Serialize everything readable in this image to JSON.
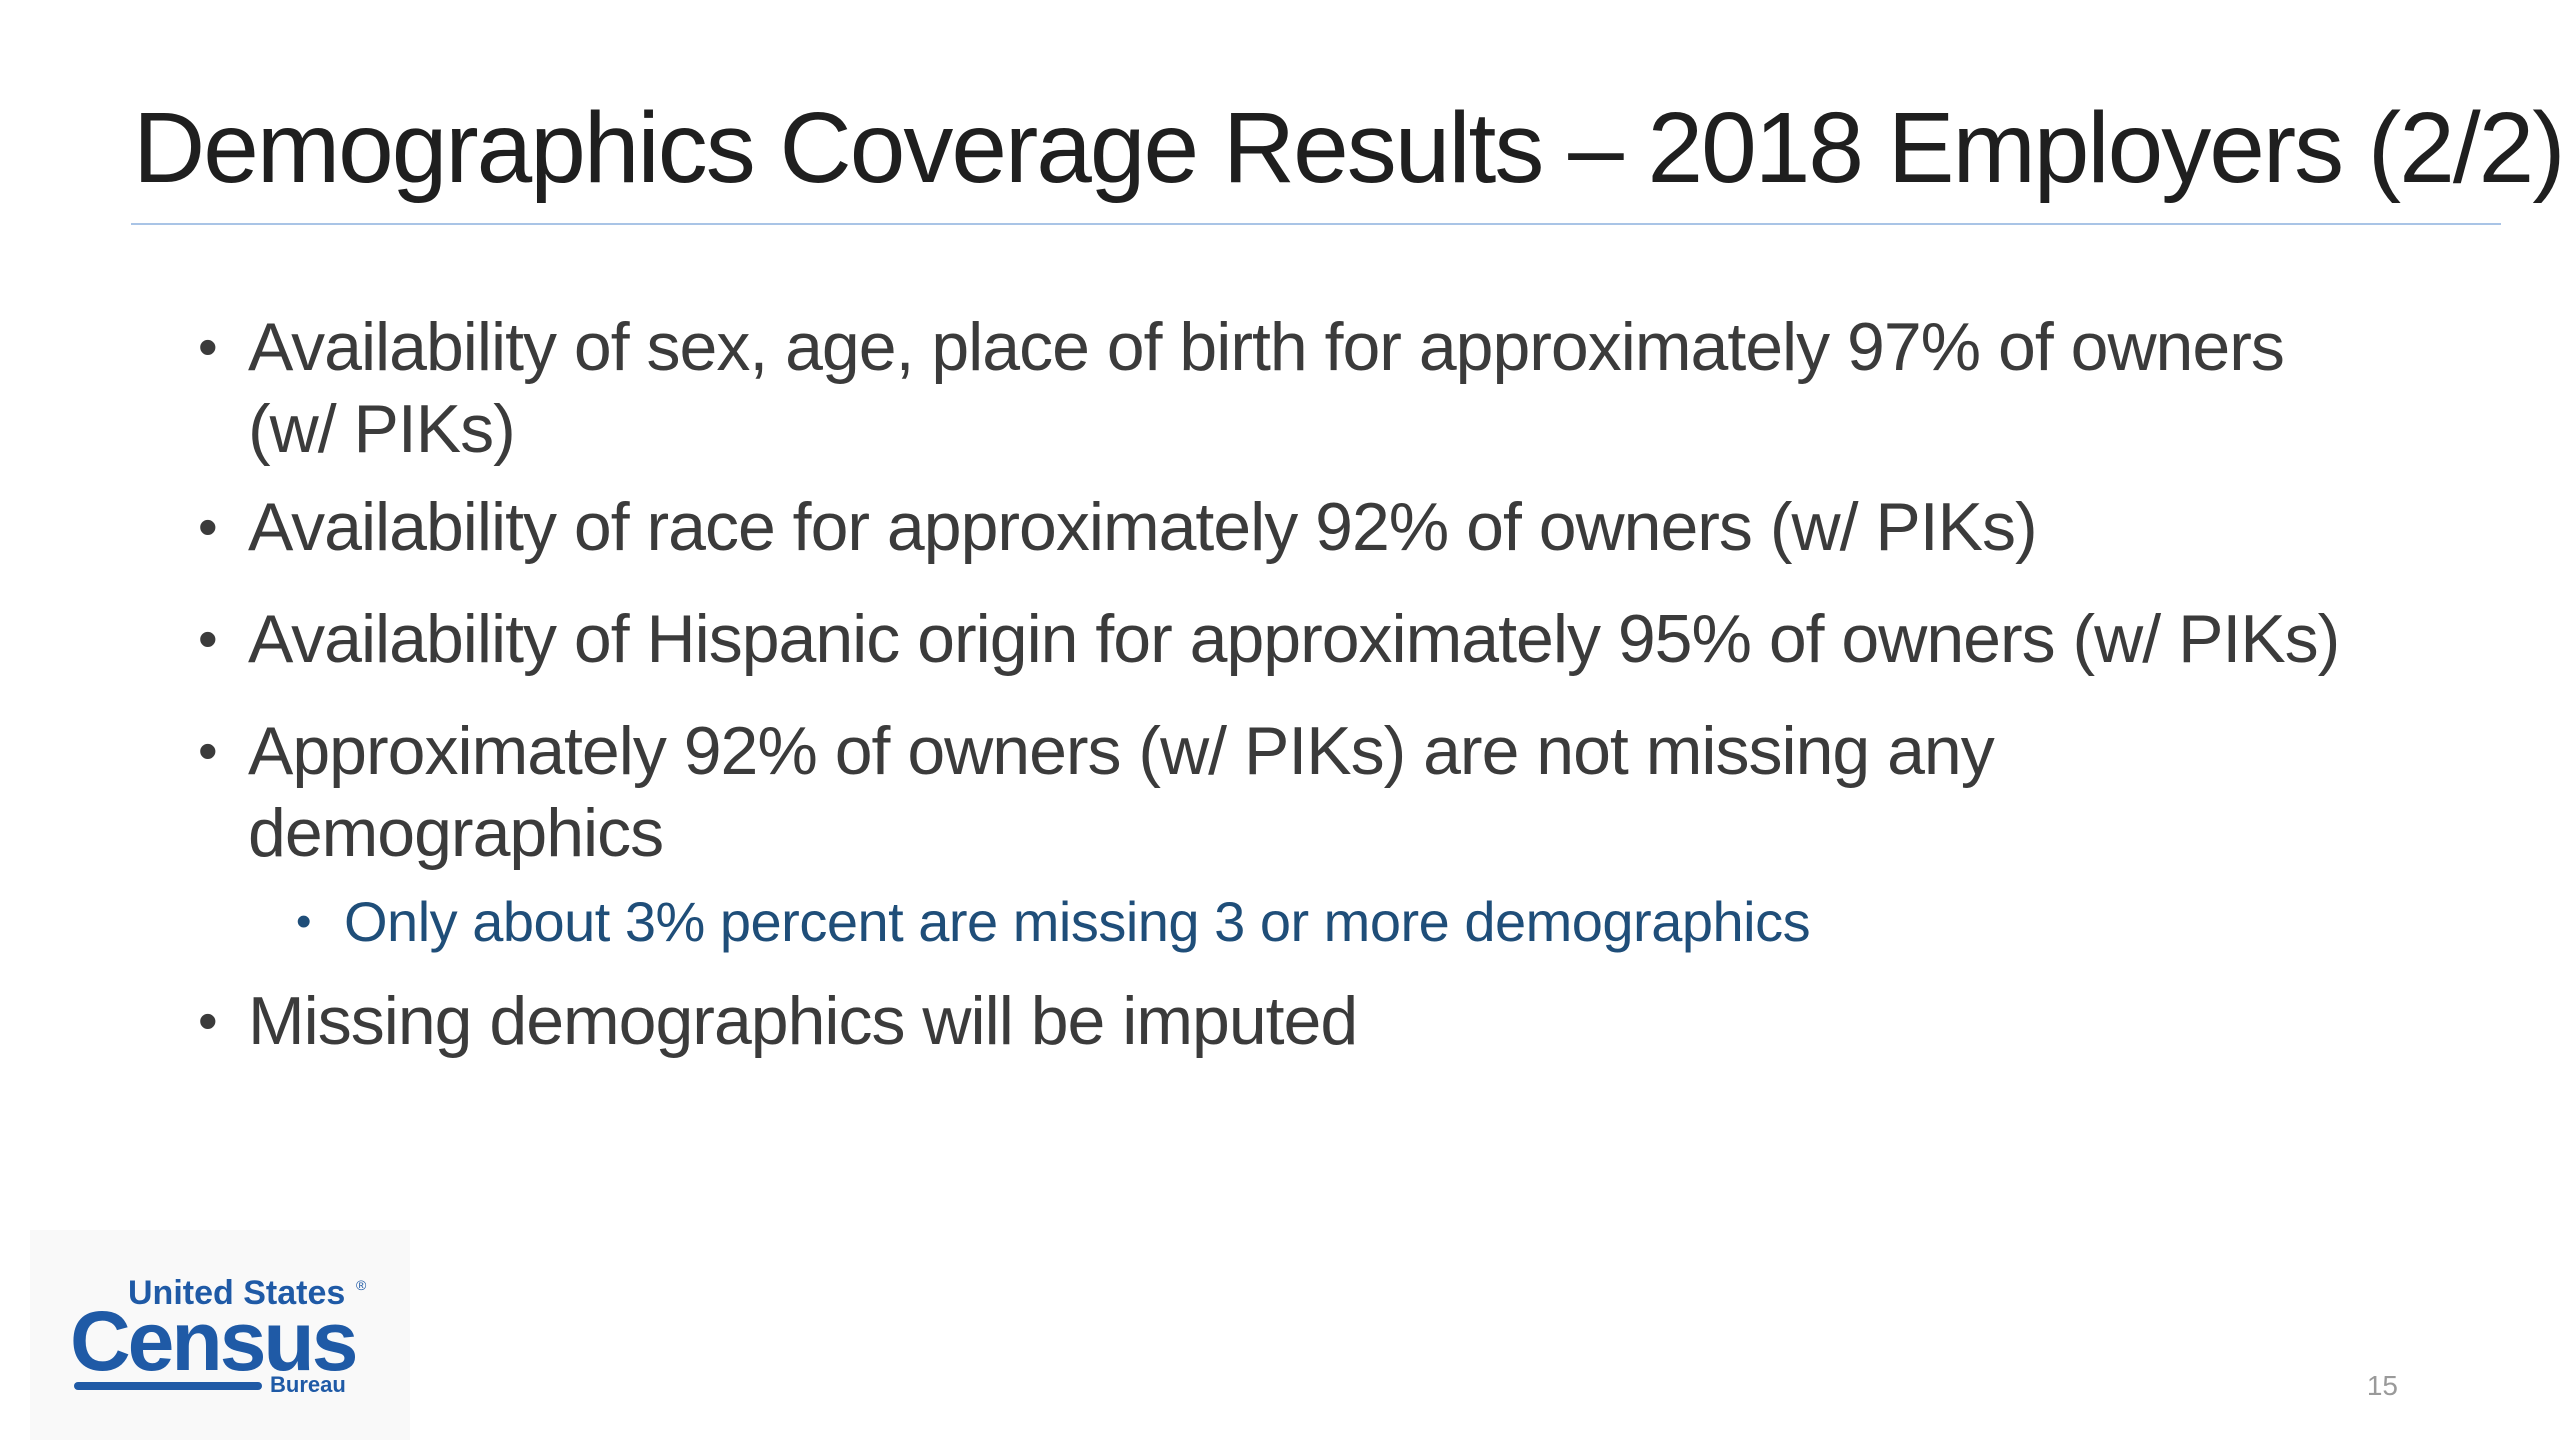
{
  "slide": {
    "title": "Demographics Coverage Results – 2018 Employers (2/2)",
    "bullets": [
      "Availability of sex, age, place of birth for approximately 97% of owners (w/ PIKs)",
      "Availability of race for approximately 92% of owners (w/ PIKs)",
      "Availability of Hispanic origin for approximately 95% of owners (w/ PIKs)",
      "Approximately 92% of owners (w/ PIKs) are not missing any demographics",
      "Missing demographics will be imputed"
    ],
    "sub_bullet": "Only about 3% percent are missing 3 or more demographics",
    "bullet_glyph": "•",
    "page_number": "15"
  },
  "logo": {
    "line1": "United States",
    "registered": "®",
    "line2": "Census",
    "line3": "Bureau",
    "icon": "census-bureau-logo"
  },
  "colors": {
    "title": "#1f1f1f",
    "body_text": "#3b3b3b",
    "sub_bullet_text": "#1f4e79",
    "title_rule": "#a9c4e6",
    "logo_blue": "#1f5aa6",
    "page_number": "#9a9a9a"
  }
}
